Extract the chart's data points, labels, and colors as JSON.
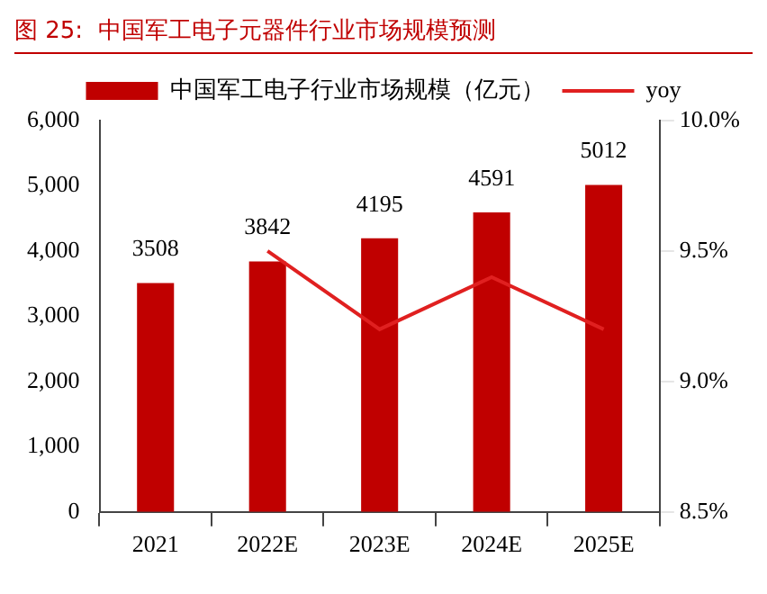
{
  "chart_data": {
    "type": "bar",
    "title": "图 25:  中国军工电子元器件行业市场规模预测",
    "categories": [
      "2021",
      "2022E",
      "2023E",
      "2024E",
      "2025E"
    ],
    "series": [
      {
        "name": "中国军工电子行业市场规模（亿元）",
        "color": "#c00000",
        "values": [
          3508,
          3842,
          4195,
          4591,
          5012
        ],
        "value_labels": [
          "3508",
          "3842",
          "4195",
          "4591",
          "5012"
        ]
      },
      {
        "name": "yoy",
        "type": "line",
        "axis": "y2",
        "color": "#e02020",
        "values": [
          null,
          9.5,
          9.2,
          9.4,
          9.2
        ]
      }
    ],
    "ylim": [
      0,
      6000
    ],
    "yticks": [
      {
        "value": 0,
        "label": "0"
      },
      {
        "value": 1000,
        "label": "1,000"
      },
      {
        "value": 2000,
        "label": "2,000"
      },
      {
        "value": 3000,
        "label": "3,000"
      },
      {
        "value": 4000,
        "label": "4,000"
      },
      {
        "value": 5000,
        "label": "5,000"
      },
      {
        "value": 6000,
        "label": "6,000"
      }
    ],
    "y2lim": [
      8.5,
      10
    ],
    "y2ticks": [
      {
        "value": 8.5,
        "label": "8.5%"
      },
      {
        "value": 9,
        "label": "9.0%"
      },
      {
        "value": 9.5,
        "label": "9.5%"
      },
      {
        "value": 10,
        "label": "10.0%"
      }
    ],
    "grid": false,
    "legend": "top",
    "marker": "none"
  }
}
